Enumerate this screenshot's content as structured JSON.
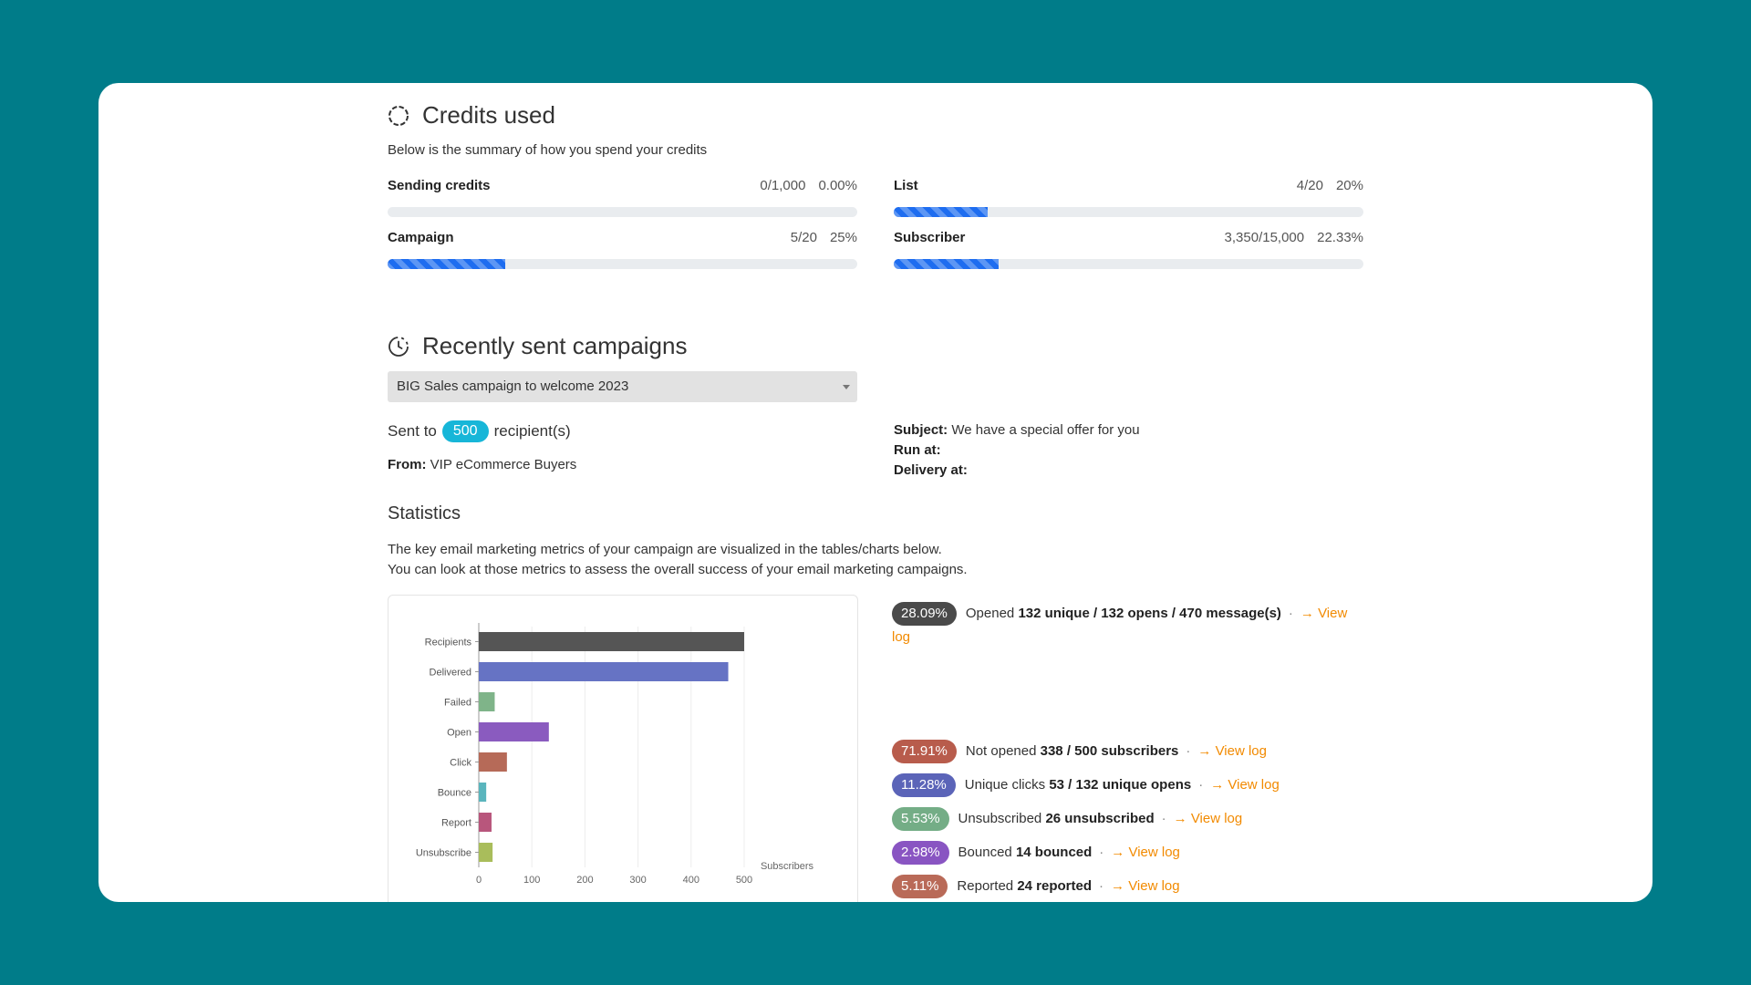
{
  "credits": {
    "title": "Credits used",
    "description": "Below is the summary of how you spend your credits",
    "meters": [
      {
        "label": "Sending credits",
        "count": "0/1,000",
        "percent": "0.00%",
        "fill": 0.0
      },
      {
        "label": "List",
        "count": "4/20",
        "percent": "20%",
        "fill": 0.2
      },
      {
        "label": "Campaign",
        "count": "5/20",
        "percent": "25%",
        "fill": 0.25
      },
      {
        "label": "Subscriber",
        "count": "3,350/15,000",
        "percent": "22.33%",
        "fill": 0.2233
      }
    ]
  },
  "recent": {
    "title": "Recently sent campaigns",
    "selected_campaign": "BIG Sales campaign to welcome 2023",
    "sent_prefix": "Sent to",
    "recipients": "500",
    "sent_suffix": "recipient(s)",
    "from_label": "From:",
    "from_value": "VIP eCommerce Buyers",
    "subject_label": "Subject:",
    "subject_value": "We have a special offer for you",
    "run_at_label": "Run at:",
    "delivery_at_label": "Delivery at:"
  },
  "statistics": {
    "title": "Statistics",
    "line1": "The key email marketing metrics of your campaign are visualized in the tables/charts below.",
    "line2": "You can look at those metrics to assess the overall success of your email marketing campaigns."
  },
  "chart_data": {
    "type": "bar",
    "orientation": "horizontal",
    "categories": [
      "Recipients",
      "Delivered",
      "Failed",
      "Open",
      "Click",
      "Bounce",
      "Report",
      "Unsubscribe"
    ],
    "values": [
      500,
      470,
      30,
      132,
      53,
      14,
      24,
      26
    ],
    "colors": [
      "#555555",
      "#6673c4",
      "#7fb489",
      "#8a5bbf",
      "#b66a58",
      "#5ab5bd",
      "#b8567c",
      "#a9bd5b"
    ],
    "xlabel": "Subscribers",
    "xticks": [
      0,
      100,
      200,
      300,
      400,
      500
    ],
    "xlim": [
      0,
      500
    ]
  },
  "metrics": [
    {
      "badge": "28.09%",
      "color": "#4a4a4a",
      "label": "Opened",
      "bold": "132 unique / 132 opens / 470 message(s)",
      "link": "View log"
    },
    {
      "badge": "71.91%",
      "color": "#b85c4c",
      "label": "Not opened",
      "bold": "338 / 500 subscribers",
      "link": "View log"
    },
    {
      "badge": "11.28%",
      "color": "#5b64b8",
      "label": "Unique clicks",
      "bold": "53 / 132 unique opens",
      "link": "View log"
    },
    {
      "badge": "5.53%",
      "color": "#74ad86",
      "label": "Unsubscribed",
      "bold": "26 unsubscribed",
      "link": "View log"
    },
    {
      "badge": "2.98%",
      "color": "#8955c2",
      "label": "Bounced",
      "bold": "14 bounced",
      "link": "View log"
    },
    {
      "badge": "5.11%",
      "color": "#b96a58",
      "label": "Reported",
      "bold": "24 reported",
      "link": "View log"
    }
  ],
  "icons": {
    "credits": "progress-circle-icon",
    "recent": "clock-icon",
    "arrow": "arrow-right-icon"
  }
}
